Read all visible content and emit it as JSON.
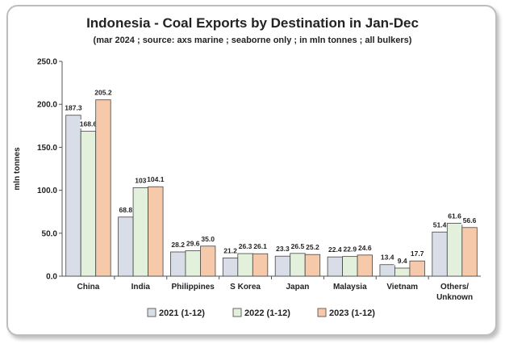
{
  "chart_data": {
    "type": "bar",
    "title": "Indonesia - Coal Exports by Destination in Jan-Dec",
    "subtitle": "(mar 2024 ; source: axs marine ; seaborne only ; in mln tonnes ; all bulkers)",
    "ylabel": "mln tonnes",
    "xlabel": "",
    "ylim": [
      0,
      250
    ],
    "yticks": [
      "0.0",
      "50.0",
      "100.0",
      "150.0",
      "200.0",
      "250.0"
    ],
    "ytick_values": [
      0,
      50,
      100,
      150,
      200,
      250
    ],
    "categories": [
      "China",
      "India",
      "Philippines",
      "S Korea",
      "Japan",
      "Malaysia",
      "Vietnam",
      "Others/\nUnknown"
    ],
    "series": [
      {
        "name": "2021 (1-12)",
        "color": "#d9dde8",
        "values": [
          187.3,
          68.8,
          28.2,
          21.2,
          23.3,
          22.4,
          13.4,
          51.4
        ],
        "labels": [
          "187.3",
          "68.8",
          "28.2",
          "21.2",
          "23.3",
          "22.4",
          "13.4",
          "51.4"
        ]
      },
      {
        "name": "2022 (1-12)",
        "color": "#e3f1dc",
        "values": [
          168.6,
          103.0,
          29.6,
          26.3,
          26.5,
          22.9,
          9.4,
          61.6
        ],
        "labels": [
          "168.6",
          "103",
          "29.6",
          "26.3",
          "26.5",
          "22.9",
          "9.4",
          "61.6"
        ]
      },
      {
        "name": "2023 (1-12)",
        "color": "#f7c9ab",
        "values": [
          205.2,
          104.1,
          35.0,
          26.1,
          25.2,
          24.6,
          17.7,
          56.6
        ],
        "labels": [
          "205.2",
          "104.1",
          "35.0",
          "26.1",
          "25.2",
          "24.6",
          "17.7",
          "56.6"
        ]
      }
    ],
    "grid": false,
    "legend_position": "bottom"
  }
}
